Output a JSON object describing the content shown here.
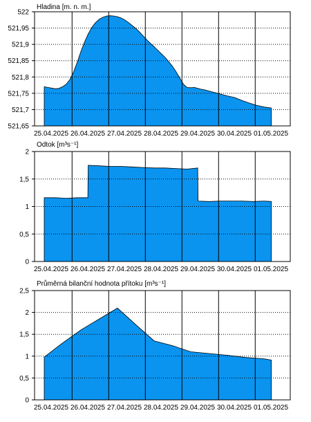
{
  "colors": {
    "fill": "#0a94f0",
    "line": "#000000",
    "background": "#ffffff"
  },
  "chart_data": [
    {
      "type": "area",
      "title": "Hladina [m. n. m.]",
      "x_labels": [
        "25.04.2025",
        "26.04.2025",
        "27.04.2025",
        "28.04.2025",
        "29.04.2025",
        "30.04.2025",
        "01.05.2025"
      ],
      "y_ticks": [
        "522",
        "521,95",
        "521,9",
        "521,85",
        "521,8",
        "521,75",
        "521,7",
        "521,65"
      ],
      "ylim": [
        521.65,
        522.0
      ],
      "grid": true,
      "x": [
        0,
        0.1,
        0.2,
        0.3,
        0.4,
        0.5,
        0.6,
        0.7,
        0.8,
        0.9,
        1.0,
        1.1,
        1.2,
        1.3,
        1.4,
        1.5,
        1.6,
        1.7,
        1.8,
        1.9,
        2.0,
        2.1,
        2.2,
        2.3,
        2.4,
        2.5,
        2.6,
        2.7,
        2.8,
        2.9,
        3.0,
        3.1,
        3.2,
        3.3,
        3.4,
        3.5,
        3.6,
        3.7,
        3.8,
        3.9,
        4.0,
        4.1,
        4.2,
        4.3,
        4.4,
        4.5,
        4.6,
        4.7,
        4.8,
        4.9,
        5.0,
        5.2,
        5.4,
        5.6,
        5.8,
        6.0,
        6.2
      ],
      "values": [
        521.77,
        521.768,
        521.766,
        521.764,
        521.765,
        521.77,
        521.778,
        521.792,
        521.815,
        521.845,
        521.878,
        521.907,
        521.932,
        521.952,
        521.967,
        521.977,
        521.983,
        521.987,
        521.988,
        521.987,
        521.985,
        521.981,
        521.975,
        521.967,
        521.958,
        521.949,
        521.938,
        521.926,
        521.914,
        521.903,
        521.893,
        521.882,
        521.871,
        521.86,
        521.847,
        521.833,
        521.816,
        521.797,
        521.778,
        521.768,
        521.767,
        521.768,
        521.765,
        521.762,
        521.76,
        521.757,
        521.754,
        521.751,
        521.748,
        521.745,
        521.742,
        521.737,
        521.728,
        521.72,
        521.713,
        521.708,
        521.705
      ]
    },
    {
      "type": "area",
      "title": "Odtok [m³s⁻¹]",
      "x_labels": [
        "25.04.2025",
        "26.04.2025",
        "27.04.2025",
        "28.04.2025",
        "29.04.2025",
        "30.04.2025",
        "01.05.2025"
      ],
      "y_ticks": [
        "2",
        "1,5",
        "1",
        "0,5",
        "0"
      ],
      "ylim": [
        0,
        2
      ],
      "grid": true,
      "x": [
        0,
        0.3,
        0.6,
        0.9,
        1.19,
        1.2,
        1.5,
        1.8,
        2.1,
        2.4,
        2.7,
        3.0,
        3.3,
        3.6,
        3.9,
        4.19,
        4.2,
        4.5,
        4.8,
        5.1,
        5.4,
        5.7,
        6.0,
        6.2
      ],
      "values": [
        1.16,
        1.16,
        1.15,
        1.16,
        1.16,
        1.75,
        1.74,
        1.73,
        1.73,
        1.72,
        1.71,
        1.7,
        1.7,
        1.69,
        1.68,
        1.7,
        1.1,
        1.09,
        1.1,
        1.1,
        1.1,
        1.09,
        1.1,
        1.09
      ]
    },
    {
      "type": "area",
      "title": "Průměrná bilanční hodnota přítoku   [m³s⁻¹]",
      "x_labels": [
        "25.04.2025",
        "26.04.2025",
        "27.04.2025",
        "28.04.2025",
        "29.04.2025",
        "30.04.2025",
        "01.05.2025"
      ],
      "y_ticks": [
        "2,5",
        "2",
        "1,5",
        "1",
        "0,5",
        "0"
      ],
      "ylim": [
        0,
        2.5
      ],
      "grid": true,
      "x": [
        0,
        0.5,
        1.0,
        1.5,
        2.0,
        2.5,
        3.0,
        3.5,
        4.0,
        4.5,
        5.0,
        5.5,
        6.0,
        6.2
      ],
      "values": [
        0.98,
        1.3,
        1.6,
        1.85,
        2.1,
        1.72,
        1.35,
        1.24,
        1.1,
        1.06,
        1.02,
        0.97,
        0.94,
        0.91
      ]
    }
  ]
}
